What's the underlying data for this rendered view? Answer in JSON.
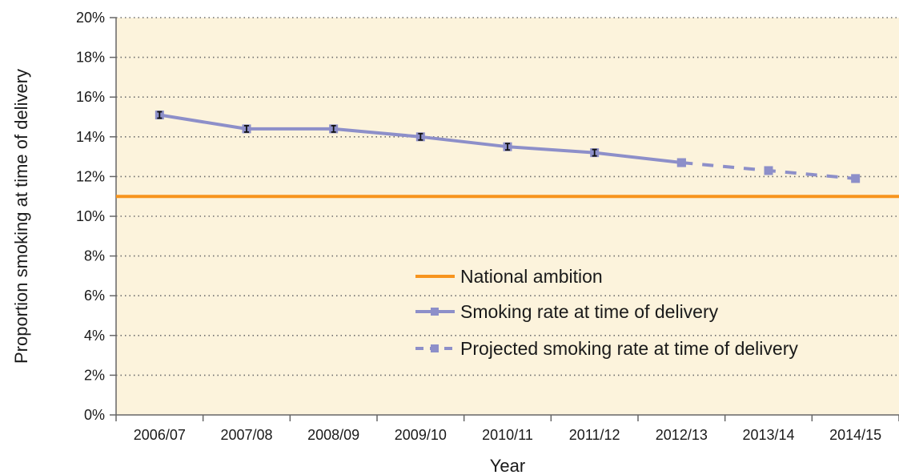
{
  "chart_data": {
    "type": "line",
    "xlabel": "Year",
    "ylabel": "Proportion smoking at time of delivery",
    "categories": [
      "2006/07",
      "2007/08",
      "2008/09",
      "2009/10",
      "2010/11",
      "2011/12",
      "2012/13",
      "2013/14",
      "2014/15"
    ],
    "ylim": [
      0,
      20
    ],
    "y_ticks": [
      0,
      2,
      4,
      6,
      8,
      10,
      12,
      14,
      16,
      18,
      20
    ],
    "y_tick_suffix": "%",
    "grid": "horizontal dotted",
    "legend_position": "lower-right",
    "series": [
      {
        "name": "National ambition",
        "style": "solid-reference-line",
        "color": "#f7941d",
        "value": 11
      },
      {
        "name": "Smoking rate at time of delivery",
        "style": "solid",
        "color": "#8d8fc9",
        "values": [
          15.1,
          14.4,
          14.4,
          14.0,
          13.5,
          13.2,
          12.7,
          null,
          null
        ],
        "error_bars": true
      },
      {
        "name": "Projected smoking rate at time of delivery",
        "style": "dashed",
        "color": "#8d8fc9",
        "values": [
          null,
          null,
          null,
          null,
          null,
          null,
          12.7,
          12.3,
          11.9
        ]
      }
    ],
    "colors": {
      "plot_background": "#fcf3dc",
      "grid": "#6e6e6e",
      "axis": "#666666",
      "marker_error": "#111111"
    }
  }
}
